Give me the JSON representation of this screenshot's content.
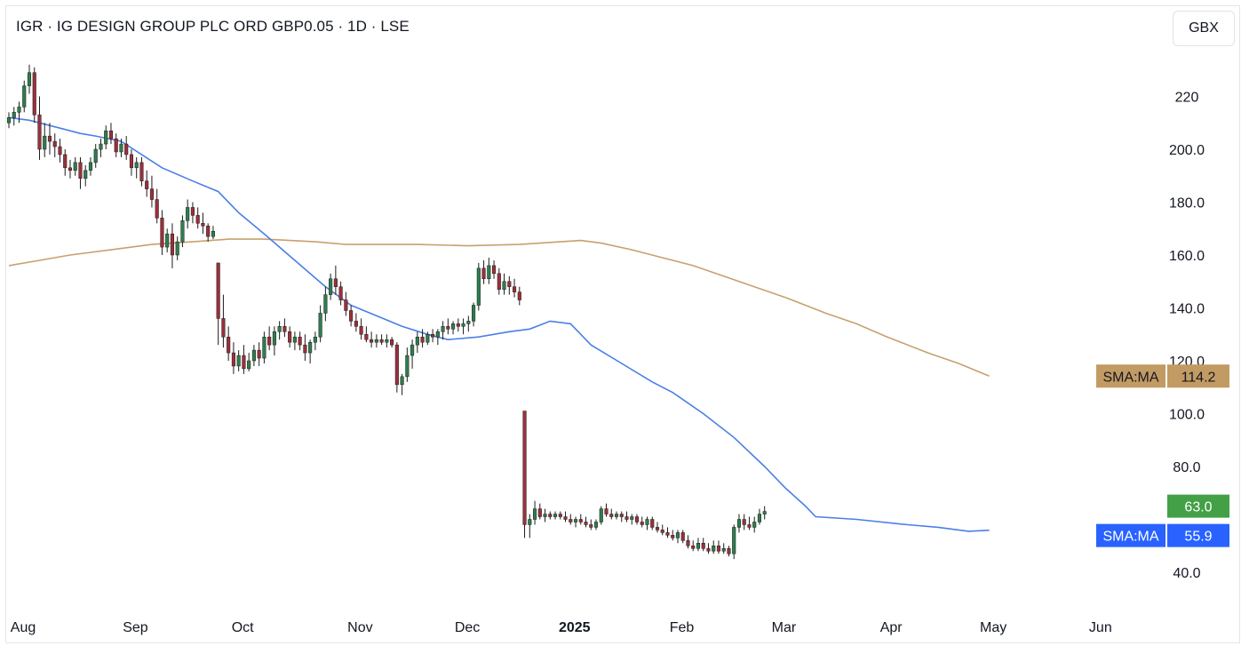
{
  "header": {
    "title": "IGR · IG DESIGN GROUP PLC ORD GBP0.05 · 1D · LSE",
    "currency": "GBX"
  },
  "colors": {
    "up": "#2e7d4f",
    "down": "#9c2f3a",
    "sma_fast": "#4a7fe8",
    "sma_slow": "#c8a06e",
    "price_tag": "#43a047",
    "sma_fast_tag": "#2962ff",
    "sma_slow_tag": "#c29a63"
  },
  "chart_data": {
    "type": "candlestick",
    "ylim": [
      32,
      236
    ],
    "yticks": [
      {
        "value": 220,
        "label": "220"
      },
      {
        "value": 200,
        "label": "200.0"
      },
      {
        "value": 180,
        "label": "180.0"
      },
      {
        "value": 160,
        "label": "160.0"
      },
      {
        "value": 140,
        "label": "140.0"
      },
      {
        "value": 120,
        "label": "120.0"
      },
      {
        "value": 100,
        "label": "100.0"
      },
      {
        "value": 80,
        "label": "80.0"
      },
      {
        "value": 40,
        "label": "40.0"
      }
    ],
    "xticks": [
      {
        "label": "Aug",
        "index": 0,
        "bold": false
      },
      {
        "label": "Sep",
        "index": 22,
        "bold": false
      },
      {
        "label": "Oct",
        "index": 43,
        "bold": false
      },
      {
        "label": "Nov",
        "index": 66,
        "bold": false
      },
      {
        "label": "Dec",
        "index": 87,
        "bold": false
      },
      {
        "label": "2025",
        "index": 108,
        "bold": true
      },
      {
        "label": "Feb",
        "index": 129,
        "bold": false
      },
      {
        "label": "Mar",
        "index": 149,
        "bold": false
      },
      {
        "label": "Apr",
        "index": 170,
        "bold": false
      },
      {
        "label": "May",
        "index": 190,
        "bold": false
      },
      {
        "label": "Jun",
        "index": 211,
        "bold": false
      }
    ],
    "candles": [
      [
        210,
        214,
        208,
        212
      ],
      [
        212,
        216,
        209,
        214
      ],
      [
        214,
        218,
        210,
        216
      ],
      [
        216,
        226,
        214,
        224
      ],
      [
        224,
        232,
        221,
        229
      ],
      [
        229,
        231,
        210,
        213
      ],
      [
        213,
        220,
        196,
        200
      ],
      [
        200,
        210,
        197,
        205
      ],
      [
        205,
        210,
        198,
        203
      ],
      [
        203,
        206,
        197,
        201
      ],
      [
        201,
        204,
        195,
        198
      ],
      [
        198,
        200,
        190,
        193
      ],
      [
        193,
        196,
        189,
        192
      ],
      [
        192,
        197,
        190,
        195
      ],
      [
        195,
        197,
        185,
        189
      ],
      [
        189,
        194,
        186,
        192
      ],
      [
        192,
        197,
        190,
        195
      ],
      [
        195,
        202,
        193,
        200
      ],
      [
        200,
        204,
        197,
        202
      ],
      [
        202,
        209,
        200,
        207
      ],
      [
        207,
        210,
        202,
        204
      ],
      [
        204,
        206,
        197,
        199
      ],
      [
        199,
        204,
        197,
        202
      ],
      [
        202,
        205,
        196,
        198
      ],
      [
        198,
        200,
        190,
        193
      ],
      [
        193,
        197,
        189,
        195
      ],
      [
        195,
        197,
        186,
        188
      ],
      [
        188,
        192,
        182,
        185
      ],
      [
        185,
        190,
        178,
        181
      ],
      [
        181,
        185,
        172,
        174
      ],
      [
        174,
        177,
        160,
        163
      ],
      [
        163,
        170,
        161,
        168
      ],
      [
        168,
        172,
        155,
        160
      ],
      [
        160,
        167,
        158,
        165
      ],
      [
        165,
        175,
        163,
        173
      ],
      [
        173,
        181,
        170,
        178
      ],
      [
        178,
        180,
        172,
        175
      ],
      [
        175,
        178,
        170,
        172
      ],
      [
        172,
        176,
        168,
        171
      ],
      [
        171,
        172,
        165,
        167
      ],
      [
        167,
        171,
        166,
        169
      ],
      [
        157,
        157,
        126,
        136
      ],
      [
        136,
        145,
        125,
        129
      ],
      [
        129,
        133,
        120,
        123
      ],
      [
        123,
        127,
        115,
        118
      ],
      [
        118,
        124,
        116,
        122
      ],
      [
        122,
        126,
        115,
        117
      ],
      [
        117,
        123,
        116,
        120
      ],
      [
        120,
        126,
        118,
        124
      ],
      [
        124,
        127,
        118,
        121
      ],
      [
        121,
        131,
        119,
        129
      ],
      [
        129,
        133,
        124,
        126
      ],
      [
        126,
        133,
        122,
        131
      ],
      [
        131,
        135,
        128,
        133
      ],
      [
        133,
        136,
        129,
        131
      ],
      [
        131,
        133,
        125,
        127
      ],
      [
        127,
        131,
        124,
        129
      ],
      [
        129,
        131,
        124,
        126
      ],
      [
        126,
        130,
        120,
        123
      ],
      [
        123,
        128,
        119,
        127
      ],
      [
        127,
        131,
        124,
        129
      ],
      [
        129,
        141,
        127,
        138
      ],
      [
        138,
        148,
        135,
        145
      ],
      [
        145,
        153,
        143,
        151
      ],
      [
        151,
        156,
        145,
        148
      ],
      [
        148,
        150,
        141,
        143
      ],
      [
        143,
        146,
        137,
        139
      ],
      [
        139,
        141,
        133,
        135
      ],
      [
        135,
        138,
        131,
        133
      ],
      [
        133,
        136,
        128,
        130
      ],
      [
        130,
        133,
        127,
        128
      ],
      [
        128,
        131,
        125,
        127
      ],
      [
        127,
        130,
        125,
        128
      ],
      [
        128,
        130,
        126,
        127
      ],
      [
        127,
        130,
        125,
        128
      ],
      [
        128,
        129,
        125,
        126
      ],
      [
        126,
        127,
        108,
        111
      ],
      [
        111,
        115,
        107,
        114
      ],
      [
        114,
        125,
        112,
        122
      ],
      [
        122,
        128,
        117,
        126
      ],
      [
        126,
        131,
        123,
        129
      ],
      [
        129,
        132,
        125,
        127
      ],
      [
        127,
        131,
        126,
        130
      ],
      [
        130,
        132,
        127,
        129
      ],
      [
        129,
        132,
        126,
        131
      ],
      [
        131,
        135,
        128,
        133
      ],
      [
        133,
        136,
        130,
        132
      ],
      [
        132,
        135,
        130,
        134
      ],
      [
        134,
        136,
        131,
        133
      ],
      [
        133,
        136,
        130,
        134
      ],
      [
        134,
        137,
        131,
        135
      ],
      [
        135,
        142,
        133,
        141
      ],
      [
        141,
        157,
        139,
        155
      ],
      [
        155,
        158,
        149,
        151
      ],
      [
        151,
        159,
        149,
        156
      ],
      [
        156,
        158,
        151,
        153
      ],
      [
        153,
        155,
        145,
        147
      ],
      [
        147,
        153,
        145,
        150
      ],
      [
        150,
        152,
        145,
        148
      ],
      [
        148,
        151,
        144,
        146
      ],
      [
        146,
        148,
        141,
        143
      ],
      [
        101,
        101,
        53,
        58
      ],
      [
        58,
        62,
        53,
        60
      ],
      [
        60,
        67,
        58,
        64
      ],
      [
        64,
        66,
        60,
        61
      ],
      [
        61,
        64,
        59,
        62
      ],
      [
        62,
        63,
        60,
        61
      ],
      [
        61,
        63,
        60,
        62
      ],
      [
        62,
        63,
        60,
        61
      ],
      [
        61,
        63,
        59,
        60
      ],
      [
        60,
        62,
        58,
        59
      ],
      [
        59,
        61,
        57,
        60
      ],
      [
        60,
        62,
        58,
        59
      ],
      [
        59,
        61,
        57,
        58
      ],
      [
        58,
        60,
        56,
        57
      ],
      [
        57,
        60,
        56,
        59
      ],
      [
        59,
        65,
        58,
        64
      ],
      [
        64,
        66,
        61,
        62
      ],
      [
        62,
        64,
        60,
        61
      ],
      [
        61,
        63,
        60,
        62
      ],
      [
        62,
        63,
        59,
        61
      ],
      [
        61,
        63,
        59,
        60
      ],
      [
        60,
        62,
        58,
        61
      ],
      [
        61,
        62,
        58,
        59
      ],
      [
        59,
        61,
        57,
        58
      ],
      [
        58,
        61,
        56,
        60
      ],
      [
        60,
        61,
        56,
        57
      ],
      [
        57,
        59,
        55,
        56
      ],
      [
        56,
        58,
        54,
        55
      ],
      [
        55,
        57,
        53,
        54
      ],
      [
        54,
        56,
        52,
        53
      ],
      [
        53,
        56,
        51,
        55
      ],
      [
        55,
        56,
        51,
        52
      ],
      [
        52,
        54,
        49,
        50
      ],
      [
        50,
        52,
        48,
        49
      ],
      [
        49,
        53,
        48,
        51
      ],
      [
        51,
        53,
        48,
        49
      ],
      [
        49,
        51,
        47,
        48
      ],
      [
        48,
        52,
        47,
        50
      ],
      [
        50,
        52,
        47,
        48
      ],
      [
        48,
        51,
        47,
        49
      ],
      [
        49,
        50,
        46,
        47
      ],
      [
        47,
        58,
        45,
        57
      ],
      [
        57,
        62,
        55,
        60
      ],
      [
        60,
        62,
        56,
        58
      ],
      [
        58,
        61,
        56,
        57
      ],
      [
        57,
        61,
        55,
        59
      ],
      [
        59,
        64,
        58,
        62
      ],
      [
        62,
        65,
        60,
        63
      ]
    ],
    "sma_fast": {
      "name": "SMA:MA",
      "last": 55.9,
      "points": [
        [
          0,
          212
        ],
        [
          4,
          211
        ],
        [
          10,
          208
        ],
        [
          14,
          206
        ],
        [
          17,
          205
        ],
        [
          22,
          203
        ],
        [
          26,
          198
        ],
        [
          30,
          193
        ],
        [
          36,
          188
        ],
        [
          41,
          184
        ],
        [
          45,
          176
        ],
        [
          50,
          168
        ],
        [
          56,
          158
        ],
        [
          62,
          148
        ],
        [
          67,
          141
        ],
        [
          72,
          137
        ],
        [
          77,
          133
        ],
        [
          82,
          130
        ],
        [
          86,
          128
        ],
        [
          92,
          129
        ],
        [
          98,
          131
        ],
        [
          102,
          132
        ],
        [
          106,
          135
        ],
        [
          110,
          134
        ],
        [
          114,
          126
        ],
        [
          120,
          119
        ],
        [
          126,
          112
        ],
        [
          130,
          108
        ],
        [
          136,
          100
        ],
        [
          142,
          91
        ],
        [
          148,
          80
        ],
        [
          152,
          72
        ],
        [
          156,
          65
        ],
        [
          158,
          61
        ],
        [
          166,
          60
        ],
        [
          176,
          58
        ],
        [
          182,
          57
        ],
        [
          186,
          56
        ],
        [
          188,
          55.5
        ],
        [
          192,
          55.9
        ]
      ]
    },
    "sma_slow": {
      "name": "SMA:MA",
      "last": 114.2,
      "points": [
        [
          0,
          156
        ],
        [
          6,
          158
        ],
        [
          12,
          160
        ],
        [
          20,
          162
        ],
        [
          28,
          164
        ],
        [
          36,
          165
        ],
        [
          43,
          166
        ],
        [
          50,
          166
        ],
        [
          60,
          165
        ],
        [
          66,
          164
        ],
        [
          80,
          164
        ],
        [
          90,
          163.5
        ],
        [
          100,
          164
        ],
        [
          108,
          165
        ],
        [
          112,
          165.5
        ],
        [
          116,
          164.5
        ],
        [
          122,
          162
        ],
        [
          128,
          159
        ],
        [
          134,
          156
        ],
        [
          140,
          152
        ],
        [
          146,
          148
        ],
        [
          152,
          144
        ],
        [
          160,
          138
        ],
        [
          166,
          134
        ],
        [
          172,
          129
        ],
        [
          180,
          123
        ],
        [
          186,
          119
        ],
        [
          192,
          114.2
        ]
      ]
    },
    "last_price": 63.0,
    "labels": {
      "price": "63.0",
      "sma_fast": "55.9",
      "sma_slow": "114.2",
      "sma_fast_name": "SMA:MA",
      "sma_slow_name": "SMA:MA"
    }
  }
}
